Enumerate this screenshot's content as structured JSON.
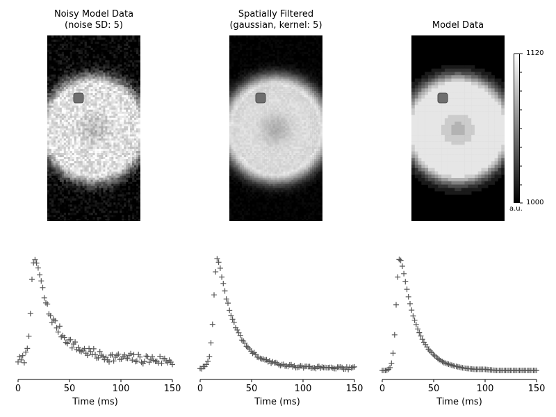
{
  "panels": [
    {
      "title_line1": "Noisy Model Data",
      "title_line2": "(noise SD: 5)",
      "style": "noisy",
      "noise": 5
    },
    {
      "title_line1": "Spatially Filtered",
      "title_line2": "(gaussian, kernel: 5)",
      "style": "filtered",
      "noise": 1.4
    },
    {
      "title_line1": "Model Data",
      "title_line2": "",
      "style": "model",
      "noise": 0
    }
  ],
  "colorbar": {
    "max_label": "1120",
    "min_label": "1000",
    "unit": "a.u.",
    "colormap": "gray"
  },
  "colors": {
    "marker": "#555555",
    "roi": "#6e6e6e",
    "axis": "#000000"
  },
  "chart_data": [
    {
      "type": "scatter",
      "marker": "+",
      "series_name": "noisy",
      "xlabel": "Time (ms)",
      "xticks": [
        0,
        50,
        100,
        150
      ],
      "xlim": [
        0,
        150
      ],
      "noise": 0.045,
      "x": [
        0,
        2,
        4,
        6,
        8,
        10,
        12,
        14,
        16,
        18,
        20,
        22,
        24,
        26,
        28,
        30,
        35,
        40,
        45,
        50,
        55,
        60,
        70,
        80,
        90,
        100,
        110,
        120,
        130,
        140,
        150
      ],
      "y": [
        0.1,
        0.08,
        0.09,
        0.11,
        0.14,
        0.28,
        0.55,
        0.85,
        1.0,
        0.97,
        0.9,
        0.8,
        0.72,
        0.64,
        0.58,
        0.52,
        0.43,
        0.36,
        0.3,
        0.26,
        0.22,
        0.19,
        0.16,
        0.13,
        0.12,
        0.11,
        0.11,
        0.1,
        0.1,
        0.09,
        0.09
      ]
    },
    {
      "type": "scatter",
      "marker": "+",
      "series_name": "filtered",
      "xlabel": "Time (ms)",
      "xticks": [
        0,
        50,
        100,
        150
      ],
      "xlim": [
        0,
        150
      ],
      "noise": 0.012,
      "x": [
        0,
        2,
        4,
        6,
        8,
        10,
        12,
        14,
        16,
        18,
        20,
        22,
        24,
        26,
        28,
        30,
        35,
        40,
        45,
        50,
        55,
        60,
        70,
        80,
        90,
        100,
        110,
        120,
        130,
        140,
        150
      ],
      "y": [
        0.02,
        0.02,
        0.03,
        0.05,
        0.08,
        0.18,
        0.42,
        0.75,
        1.0,
        0.98,
        0.9,
        0.8,
        0.71,
        0.63,
        0.56,
        0.49,
        0.38,
        0.29,
        0.22,
        0.17,
        0.13,
        0.1,
        0.07,
        0.05,
        0.04,
        0.03,
        0.03,
        0.02,
        0.02,
        0.02,
        0.02
      ]
    },
    {
      "type": "scatter",
      "marker": "+",
      "series_name": "model",
      "xlabel": "Time (ms)",
      "xticks": [
        0,
        50,
        100,
        150
      ],
      "xlim": [
        0,
        150
      ],
      "noise": 0,
      "x": [
        0,
        2,
        4,
        6,
        8,
        10,
        12,
        14,
        16,
        18,
        20,
        22,
        24,
        26,
        28,
        30,
        35,
        40,
        45,
        50,
        55,
        60,
        70,
        80,
        90,
        100,
        110,
        120,
        130,
        140,
        150
      ],
      "y": [
        0.0,
        0.0,
        0.0,
        0.01,
        0.03,
        0.1,
        0.32,
        0.68,
        1.0,
        0.99,
        0.92,
        0.82,
        0.73,
        0.64,
        0.56,
        0.49,
        0.36,
        0.26,
        0.19,
        0.14,
        0.1,
        0.07,
        0.04,
        0.02,
        0.01,
        0.01,
        0.0,
        0.0,
        0.0,
        0.0,
        0.0
      ]
    }
  ]
}
